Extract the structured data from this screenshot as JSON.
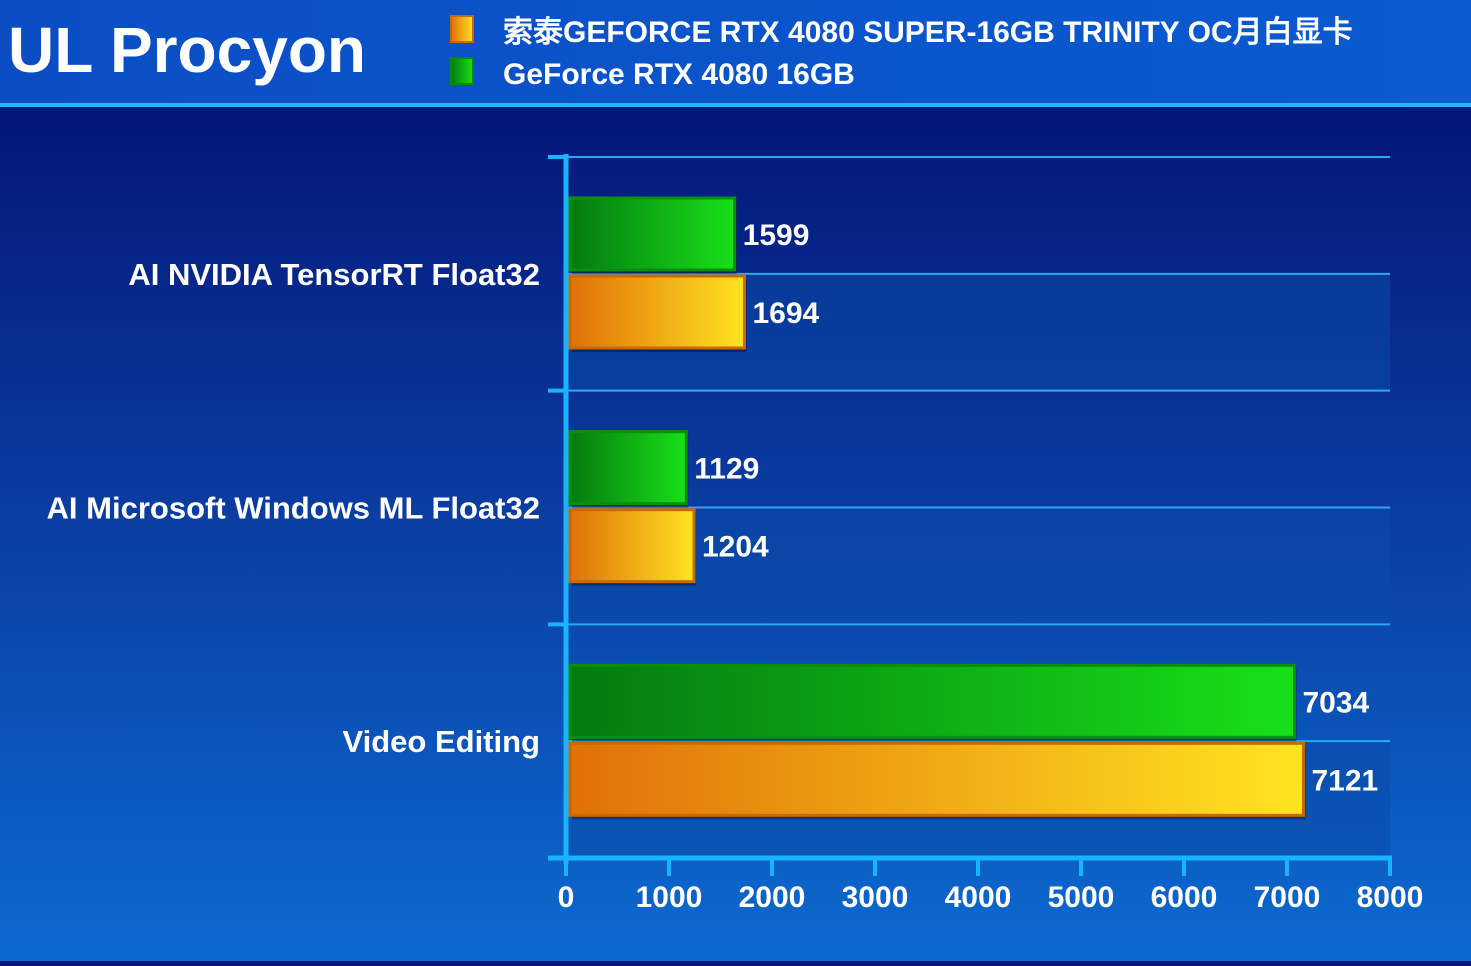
{
  "chart_data": {
    "type": "bar",
    "orientation": "horizontal",
    "title": "UL Procyon",
    "categories": [
      "AI NVIDIA TensorRT Float32",
      "AI Microsoft Windows ML Float32",
      "Video Editing"
    ],
    "series": [
      {
        "name": "GeForce RTX 4080 16GB",
        "color": "#12c012",
        "values": [
          1599,
          1129,
          7034
        ]
      },
      {
        "name": "索泰GEFORCE RTX 4080 SUPER-16GB TRINITY OC月白显卡",
        "color": "#f0a010",
        "values": [
          1694,
          1204,
          7121
        ]
      }
    ],
    "legend": {
      "position": "top",
      "order": [
        "索泰GEFORCE RTX 4080 SUPER-16GB TRINITY OC月白显卡",
        "GeForce RTX 4080 16GB"
      ]
    },
    "xlim": [
      0,
      8000
    ],
    "xticks": [
      "0",
      "1000",
      "2000",
      "3000",
      "4000",
      "5000",
      "6000",
      "7000",
      "8000"
    ],
    "xlabel": "",
    "ylabel": "",
    "grid": true
  }
}
